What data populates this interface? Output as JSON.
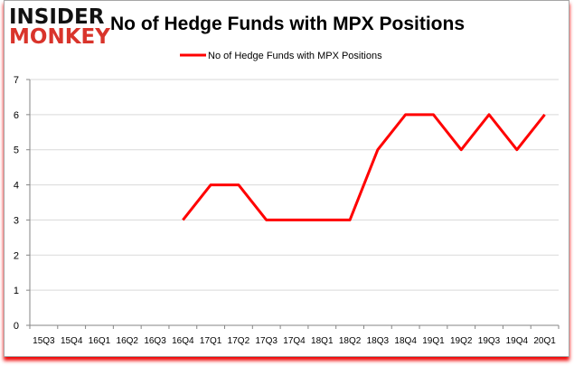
{
  "logo": {
    "line1": "INSIDER",
    "line2": "MONKEY"
  },
  "chart_data": {
    "type": "line",
    "title": "No of Hedge Funds with MPX Positions",
    "legend": {
      "label": "No of Hedge Funds with MPX Positions",
      "placement": "top-center"
    },
    "categories": [
      "15Q3",
      "15Q4",
      "16Q1",
      "16Q2",
      "16Q3",
      "16Q4",
      "17Q1",
      "17Q2",
      "17Q3",
      "17Q4",
      "18Q1",
      "18Q2",
      "18Q3",
      "18Q4",
      "19Q1",
      "19Q2",
      "19Q3",
      "19Q4",
      "20Q1"
    ],
    "series": [
      {
        "name": "No of Hedge Funds with MPX Positions",
        "color": "#ff0000",
        "values": [
          null,
          null,
          null,
          null,
          null,
          3,
          4,
          4,
          3,
          3,
          3,
          3,
          5,
          6,
          6,
          5,
          6,
          5,
          6
        ]
      }
    ],
    "yticks": [
      0,
      1,
      2,
      3,
      4,
      5,
      6,
      7
    ],
    "ylim": [
      0,
      7
    ],
    "grid": true,
    "xlabel": "",
    "ylabel": ""
  }
}
